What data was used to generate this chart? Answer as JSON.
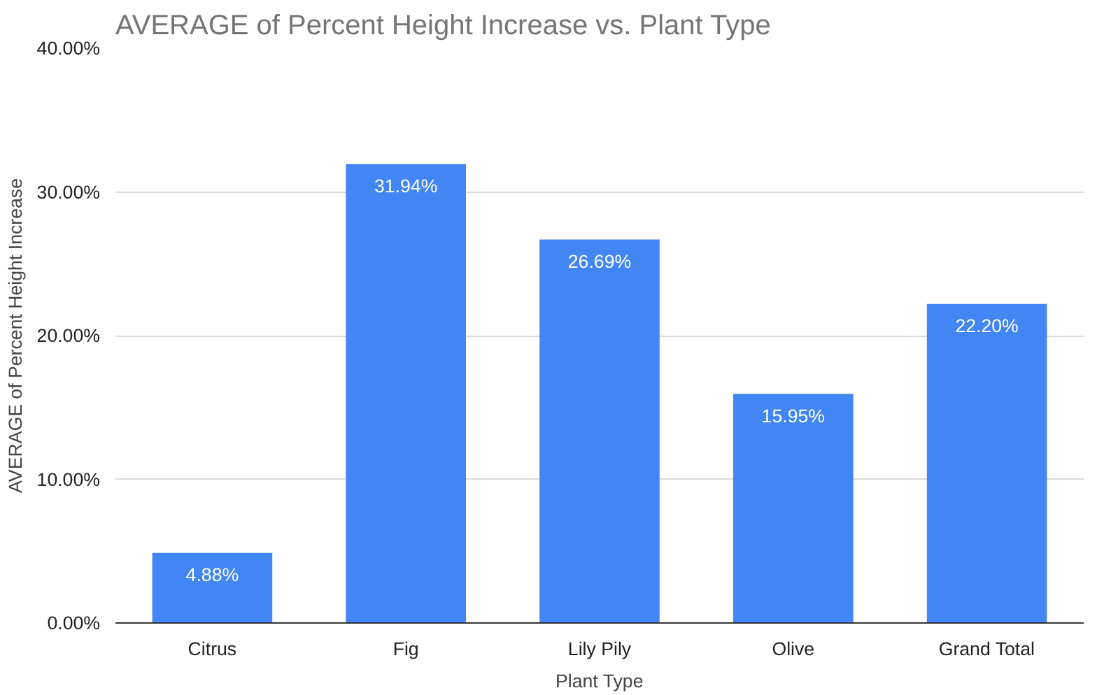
{
  "chart_data": {
    "type": "bar",
    "title": "AVERAGE of Percent Height Increase vs. Plant Type",
    "xlabel": "Plant Type",
    "ylabel": "AVERAGE of Percent Height Increase",
    "categories": [
      "Citrus",
      "Fig",
      "Lily Pily",
      "Olive",
      "Grand Total"
    ],
    "values": [
      4.88,
      31.94,
      26.69,
      15.95,
      22.2
    ],
    "value_labels": [
      "4.88%",
      "31.94%",
      "26.69%",
      "15.95%",
      "22.20%"
    ],
    "color": "#4285f4",
    "ylim": [
      0,
      40
    ],
    "yticks": [
      {
        "value": 0,
        "label": "0.00%"
      },
      {
        "value": 10,
        "label": "10.00%"
      },
      {
        "value": 20,
        "label": "20.00%"
      },
      {
        "value": 30,
        "label": "30.00%"
      },
      {
        "value": 40,
        "label": "40.00%"
      }
    ],
    "grid": "y"
  }
}
